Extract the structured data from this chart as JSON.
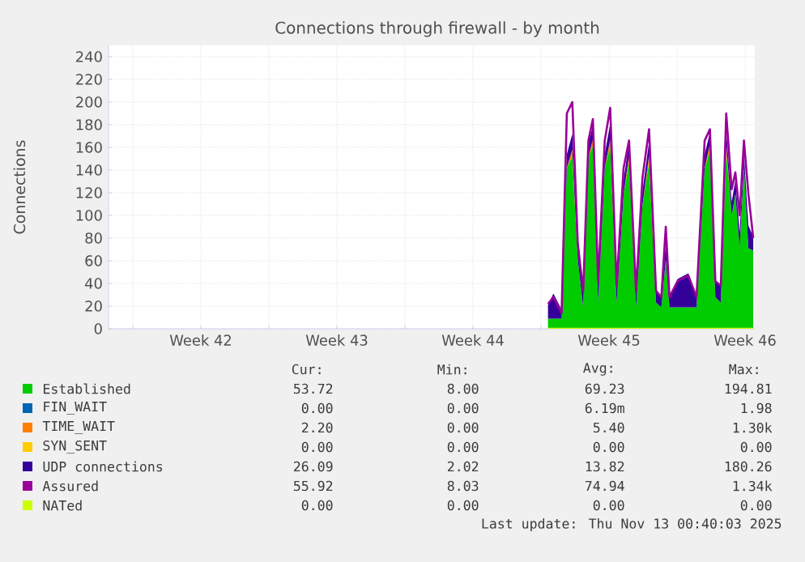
{
  "chart_data": {
    "type": "area",
    "stacked": true,
    "title": "Connections through firewall - by month",
    "ylabel": "Connections",
    "x": [
      "2025-11-02T08:38",
      "2025-11-02T15:22",
      "2025-11-03T01:26",
      "2025-11-03T07:55",
      "2025-11-03T14:38",
      "2025-11-03T21:22",
      "2025-11-04T04:05",
      "2025-11-04T10:34",
      "2025-11-04T16:05",
      "2025-11-04T22:34",
      "2025-11-05T06:43",
      "2025-11-05T13:26",
      "2025-11-05T21:22",
      "2025-11-06T06:00",
      "2025-11-06T12:43",
      "2025-11-06T21:22",
      "2025-11-07T05:17",
      "2025-11-07T13:26",
      "2025-11-07T22:05",
      "2025-11-08T04:34",
      "2025-11-08T10:05",
      "2025-11-08T14:38",
      "2025-11-09T00:43",
      "2025-11-09T13:55",
      "2025-11-10T00:00",
      "2025-11-10T10:05",
      "2025-11-10T16:34",
      "2025-11-10T23:17",
      "2025-11-11T06:00",
      "2025-11-11T12:43",
      "2025-11-11T19:26",
      "2025-11-12T00:00",
      "2025-11-12T05:17",
      "2025-11-12T10:34",
      "2025-11-12T16:05",
      "2025-11-12T22:05"
    ],
    "xlim": [
      "2025-10-10T18:00",
      "2025-11-13T00:00"
    ],
    "xticks": [
      {
        "value": "2025-10-12",
        "label": null
      },
      {
        "value": "2025-10-15T12:00",
        "label": "Week 42"
      },
      {
        "value": "2025-10-19",
        "label": null
      },
      {
        "value": "2025-10-22T12:00",
        "label": "Week 43"
      },
      {
        "value": "2025-10-26",
        "label": null
      },
      {
        "value": "2025-10-29T12:00",
        "label": "Week 44"
      },
      {
        "value": "2025-11-02",
        "label": null
      },
      {
        "value": "2025-11-05T12:00",
        "label": "Week 45"
      },
      {
        "value": "2025-11-09",
        "label": null
      },
      {
        "value": "2025-11-12T12:00",
        "label": "Week 46"
      }
    ],
    "ylim": [
      0,
      250
    ],
    "yticks": [
      0,
      20,
      40,
      60,
      80,
      100,
      120,
      140,
      160,
      180,
      200,
      220,
      240
    ],
    "grid": true,
    "legend": "bottom",
    "series": [
      {
        "name": "Established",
        "color": "#00cc00",
        "values": [
          9,
          9,
          9,
          142,
          152,
          61,
          19,
          152,
          161,
          23,
          142,
          161,
          23,
          119,
          147,
          19,
          109,
          147,
          23,
          19,
          61,
          19,
          19,
          19,
          19,
          142,
          157,
          28,
          23,
          157,
          100,
          119,
          71,
          142,
          71,
          69
        ]
      },
      {
        "name": "FIN_WAIT",
        "color": "#0066b3",
        "values": [
          null,
          null,
          null,
          null,
          null,
          null,
          null,
          null,
          null,
          null,
          null,
          null,
          null,
          null,
          null,
          null,
          null,
          null,
          null,
          null,
          null,
          null,
          null,
          null,
          null,
          null,
          null,
          null,
          null,
          null,
          null,
          null,
          null,
          null,
          null,
          null
        ]
      },
      {
        "name": "TIME_WAIT",
        "color": "#ff8000",
        "values": [
          0,
          0,
          0,
          0,
          6,
          0,
          0,
          0,
          6,
          0,
          0,
          6,
          0,
          0,
          6,
          0,
          0,
          6,
          0,
          0,
          0,
          0,
          0,
          0,
          0,
          0,
          6,
          0,
          0,
          6,
          0,
          0,
          0,
          0,
          0,
          0
        ]
      },
      {
        "name": "SYN_SENT",
        "color": "#ffcc00",
        "values": [
          null,
          null,
          null,
          null,
          null,
          null,
          null,
          null,
          null,
          null,
          null,
          null,
          null,
          null,
          null,
          null,
          null,
          null,
          null,
          null,
          null,
          null,
          null,
          null,
          null,
          null,
          null,
          null,
          null,
          null,
          null,
          null,
          null,
          null,
          null,
          null
        ]
      },
      {
        "name": "UDP connections",
        "color": "#330099",
        "values": [
          12,
          22,
          8,
          12,
          14,
          15,
          14,
          12,
          12,
          18,
          12,
          14,
          14,
          12,
          12,
          14,
          12,
          12,
          12,
          10,
          14,
          10,
          25,
          30,
          10,
          12,
          10,
          14,
          16,
          12,
          12,
          12,
          14,
          12,
          20,
          12
        ]
      },
      {
        "name": "Assured",
        "type": "line",
        "color": "#990099",
        "values": [
          22,
          28,
          14,
          190,
          200,
          76,
          33,
          166,
          185,
          42,
          166,
          195,
          38,
          142,
          166,
          33,
          133,
          176,
          33,
          28,
          90,
          28,
          42,
          47,
          28,
          166,
          176,
          42,
          38,
          190,
          123,
          138,
          100,
          166,
          119,
          80
        ]
      },
      {
        "name": "NATed",
        "type": "line",
        "color": "#ccff00",
        "values": [
          0,
          0,
          0,
          0,
          0,
          0,
          0,
          0,
          0,
          0,
          0,
          0,
          0,
          0,
          0,
          0,
          0,
          0,
          0,
          0,
          0,
          0,
          0,
          0,
          0,
          0,
          0,
          0,
          0,
          0,
          0,
          0,
          0,
          0,
          0,
          0
        ]
      }
    ],
    "annotations": [
      "Cur:",
      "Min:",
      "Avg:",
      "Max:",
      "53.72",
      "8.00",
      "69.23",
      "194.81",
      "0.00",
      "0.00",
      "6.19m",
      "1.98",
      "2.20",
      "0.00",
      "5.40",
      "1.30k",
      "0.00",
      "0.00",
      "0.00",
      "0.00",
      "26.09",
      "2.02",
      "13.82",
      "180.26",
      "55.92",
      "8.03",
      "74.94",
      "1.34k",
      "0.00",
      "0.00",
      "0.00",
      "0.00",
      "Last update: Thu Nov 13 00:40:03 2025"
    ]
  }
}
